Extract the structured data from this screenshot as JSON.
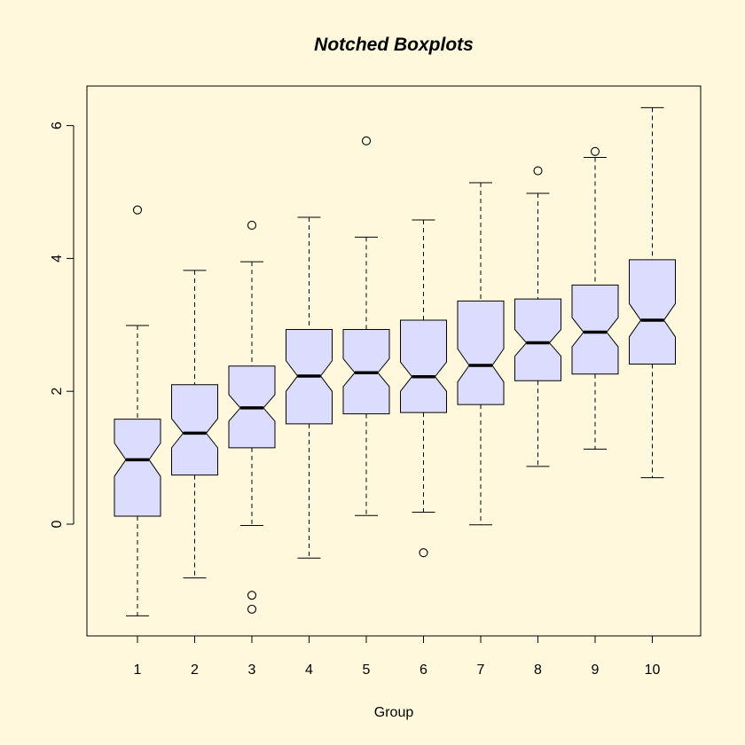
{
  "chart_data": {
    "type": "boxplot",
    "notched": true,
    "title": "Notched Boxplots",
    "xlabel": "Group",
    "ylabel": "",
    "ylim": [
      -1.7,
      6.6
    ],
    "y_ticks": [
      0,
      2,
      4,
      6
    ],
    "categories": [
      "1",
      "2",
      "3",
      "4",
      "5",
      "6",
      "7",
      "8",
      "9",
      "10"
    ],
    "boxes": [
      {
        "group": "1",
        "min": -1.38,
        "q1": 0.12,
        "median": 0.97,
        "q3": 1.58,
        "max": 2.99,
        "notch": [
          0.72,
          1.22
        ],
        "outliers": [
          4.73
        ]
      },
      {
        "group": "2",
        "min": -0.81,
        "q1": 0.74,
        "median": 1.37,
        "q3": 2.1,
        "max": 3.82,
        "notch": [
          1.15,
          1.59
        ],
        "outliers": []
      },
      {
        "group": "3",
        "min": -0.02,
        "q1": 1.15,
        "median": 1.75,
        "q3": 2.38,
        "max": 3.95,
        "notch": [
          1.55,
          1.95
        ],
        "outliers": [
          4.5,
          -1.07,
          -1.28
        ]
      },
      {
        "group": "4",
        "min": -0.51,
        "q1": 1.51,
        "median": 2.23,
        "q3": 2.93,
        "max": 4.62,
        "notch": [
          2.0,
          2.46
        ],
        "outliers": []
      },
      {
        "group": "5",
        "min": 0.13,
        "q1": 1.66,
        "median": 2.28,
        "q3": 2.93,
        "max": 4.32,
        "notch": [
          2.07,
          2.49
        ],
        "outliers": [
          5.77
        ]
      },
      {
        "group": "6",
        "min": 0.18,
        "q1": 1.68,
        "median": 2.22,
        "q3": 3.07,
        "max": 4.58,
        "notch": [
          2.0,
          2.44
        ],
        "outliers": [
          -0.43
        ]
      },
      {
        "group": "7",
        "min": -0.01,
        "q1": 1.8,
        "median": 2.39,
        "q3": 3.36,
        "max": 5.14,
        "notch": [
          2.14,
          2.64
        ],
        "outliers": []
      },
      {
        "group": "8",
        "min": 0.87,
        "q1": 2.16,
        "median": 2.73,
        "q3": 3.39,
        "max": 4.98,
        "notch": [
          2.53,
          2.93
        ],
        "outliers": [
          5.32
        ]
      },
      {
        "group": "9",
        "min": 1.13,
        "q1": 2.26,
        "median": 2.89,
        "q3": 3.6,
        "max": 5.52,
        "notch": [
          2.67,
          3.11
        ],
        "outliers": [
          5.61
        ]
      },
      {
        "group": "10",
        "min": 0.7,
        "q1": 2.41,
        "median": 3.07,
        "q3": 3.98,
        "max": 6.27,
        "notch": [
          2.82,
          3.32
        ],
        "outliers": []
      }
    ],
    "grid": false,
    "legend": "none",
    "colors": {
      "background": "#FFF8DC",
      "box_fill": "#DCDCFF",
      "stroke": "#000000"
    }
  }
}
